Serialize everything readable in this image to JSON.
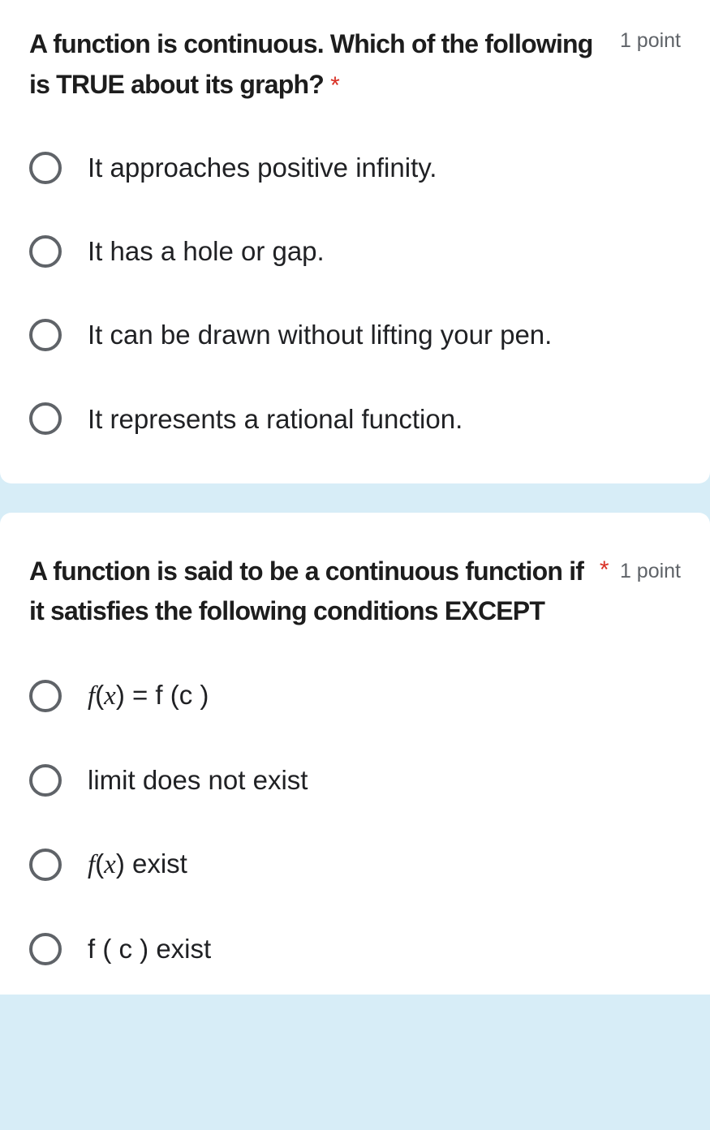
{
  "background_color": "#d7edf7",
  "card_background": "#ffffff",
  "required_color": "#d93025",
  "text_color": "#1d1d1d",
  "muted_color": "#5f6368",
  "radio_border_color": "#5f6368",
  "questions": [
    {
      "title": "A function is continuous. Which of the following is TRUE about its graph?",
      "required": "*",
      "points": "1 point",
      "options": [
        {
          "text": "It approaches positive infinity.",
          "html": "It approaches positive infinity."
        },
        {
          "text": "It has a hole or gap.",
          "html": "It has a hole or gap."
        },
        {
          "text": "It can be drawn without lifting your pen.",
          "html": "It can be drawn without lifting your pen."
        },
        {
          "text": "It represents a rational function.",
          "html": "It represents a rational function."
        }
      ]
    },
    {
      "title": "A function is said to be a continuous function if it satisfies the following conditions EXCEPT",
      "required": "*",
      "points": "1 point",
      "options": [
        {
          "text": "f(x) = f (c )",
          "html": "<span class=\"italic\">f</span>(<span class=\"italic\">x</span>) = f (c )"
        },
        {
          "text": "limit does not exist",
          "html": "limit does not exist"
        },
        {
          "text": "f(x) exist",
          "html": "<span class=\"italic\">f</span>(<span class=\"italic\">x</span>) exist"
        },
        {
          "text": "f ( c ) exist",
          "html": "f ( c ) exist"
        }
      ]
    }
  ]
}
